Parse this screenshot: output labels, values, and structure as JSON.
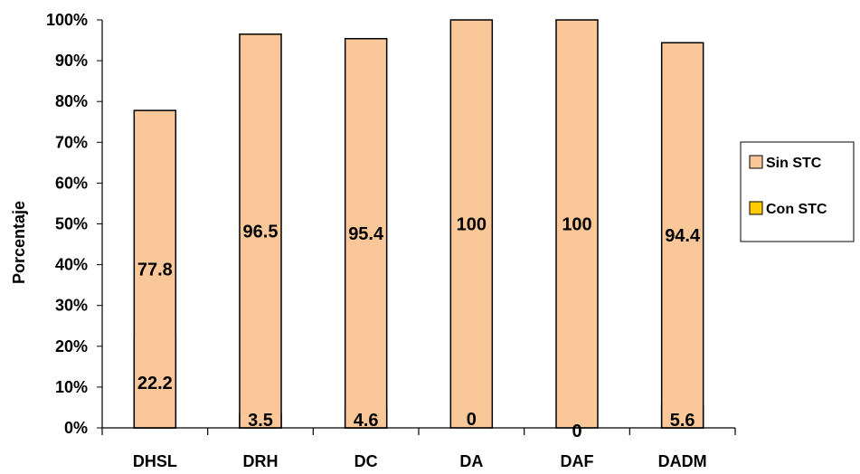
{
  "chart_data": {
    "type": "bar",
    "stacked": true,
    "categories": [
      "DHSL",
      "DRH",
      "DC",
      "DA",
      "DAF",
      "DADM"
    ],
    "series": [
      {
        "name": "Con STC",
        "values": [
          22.2,
          3.5,
          4.6,
          0,
          0,
          5.6
        ],
        "labels": [
          "22.2",
          "3.5",
          "4.6",
          "0",
          "0",
          "5.6"
        ],
        "color": "#FFCC00"
      },
      {
        "name": "Sin STC",
        "values": [
          77.8,
          96.5,
          95.4,
          100,
          100,
          94.4
        ],
        "labels": [
          "77.8",
          "96.5",
          "95.4",
          "100",
          "100",
          "94.4"
        ],
        "color": "#FAC898"
      }
    ],
    "ylabel": "Porcentaje",
    "ylim": [
      0,
      100
    ],
    "yticks": [
      "0%",
      "10%",
      "20%",
      "30%",
      "40%",
      "50%",
      "60%",
      "70%",
      "80%",
      "90%",
      "100%"
    ],
    "grid": false,
    "legend_position": "right",
    "legend_entries": [
      "Sin STC",
      "Con STC"
    ]
  }
}
